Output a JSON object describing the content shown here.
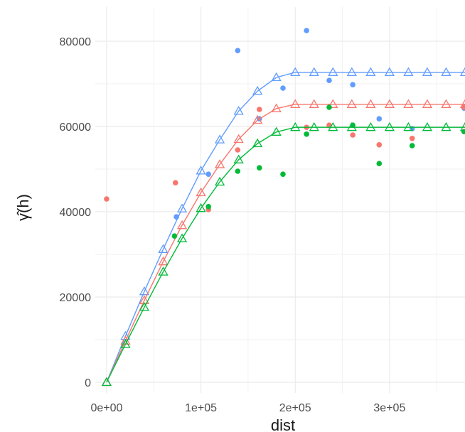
{
  "chart_data": {
    "type": "scatter",
    "title": "",
    "xlabel": "dist",
    "ylabel": "γ̂(h)",
    "xlim": [
      -12000,
      380000
    ],
    "ylim": [
      -2500,
      88000
    ],
    "grid": true,
    "x_ticks": [
      {
        "value": 0,
        "label": "0e+00"
      },
      {
        "value": 100000,
        "label": "1e+05"
      },
      {
        "value": 200000,
        "label": "2e+05"
      },
      {
        "value": 300000,
        "label": "3e+05"
      }
    ],
    "y_ticks": [
      {
        "value": 0,
        "label": "0"
      },
      {
        "value": 20000,
        "label": "20000"
      },
      {
        "value": 40000,
        "label": "40000"
      },
      {
        "value": 60000,
        "label": "60000"
      },
      {
        "value": 80000,
        "label": "80000"
      }
    ],
    "series": [
      {
        "color": "#619cff",
        "points": {
          "x": [
            74000,
            108000,
            139000,
            162000,
            187000,
            212000,
            236000,
            261000,
            289000,
            324000,
            379000
          ],
          "y": [
            38800,
            48800,
            77800,
            61800,
            69000,
            82500,
            70800,
            69800,
            61800,
            59500,
            64300
          ]
        },
        "model": {
          "x": [
            0,
            20000,
            40000,
            60000,
            80000,
            100000,
            120000,
            140000,
            160000,
            180000,
            200000,
            220000,
            240000,
            260000,
            280000,
            300000,
            320000,
            340000,
            360000,
            380000
          ],
          "y": [
            0,
            10800,
            21300,
            31200,
            40700,
            49600,
            56900,
            63600,
            68300,
            71500,
            72700,
            72700,
            72700,
            72700,
            72700,
            72700,
            72700,
            72700,
            72700,
            72700
          ]
        }
      },
      {
        "color": "#f8766d",
        "points": {
          "x": [
            0,
            73000,
            108000,
            139000,
            162000,
            212000,
            236000,
            261000,
            289000,
            324000,
            379000
          ],
          "y": [
            43000,
            46800,
            40500,
            54500,
            64000,
            59800,
            60300,
            58000,
            55700,
            57200,
            64500
          ]
        },
        "model": {
          "x": [
            0,
            20000,
            40000,
            60000,
            80000,
            100000,
            120000,
            140000,
            160000,
            180000,
            200000,
            220000,
            240000,
            260000,
            280000,
            300000,
            320000,
            340000,
            360000,
            380000
          ],
          "y": [
            0,
            9700,
            19200,
            28300,
            36800,
            44500,
            51100,
            57000,
            61500,
            64200,
            65200,
            65200,
            65200,
            65200,
            65200,
            65200,
            65200,
            65200,
            65200,
            65200
          ]
        }
      },
      {
        "color": "#00ba38",
        "points": {
          "x": [
            72000,
            108000,
            139000,
            162000,
            187000,
            212000,
            236000,
            261000,
            289000,
            324000,
            379000
          ],
          "y": [
            34300,
            41200,
            49500,
            50300,
            48800,
            58200,
            64500,
            60300,
            51300,
            55500,
            58800
          ]
        },
        "model": {
          "x": [
            0,
            20000,
            40000,
            60000,
            80000,
            100000,
            120000,
            140000,
            160000,
            180000,
            200000,
            220000,
            240000,
            260000,
            280000,
            300000,
            320000,
            340000,
            360000,
            380000
          ],
          "y": [
            0,
            8900,
            17600,
            25900,
            33700,
            40800,
            47000,
            52200,
            56000,
            58700,
            59800,
            59800,
            59800,
            59800,
            59800,
            59800,
            59800,
            59800,
            59800,
            59800
          ]
        }
      }
    ]
  }
}
